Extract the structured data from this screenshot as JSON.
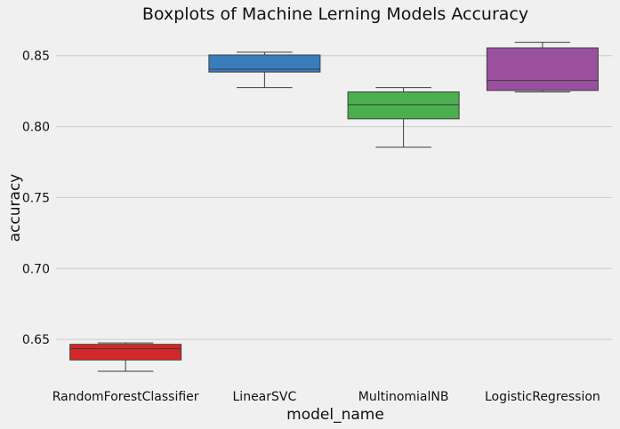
{
  "chart_data": {
    "type": "box",
    "title": "Boxplots of Machine Lerning Models Accuracy",
    "xlabel": "model_name",
    "ylabel": "accuracy",
    "ylim": [
      0.62,
      0.868
    ],
    "yticks": [
      0.65,
      0.7,
      0.75,
      0.8,
      0.85
    ],
    "ytick_labels": [
      "0.65",
      "0.70",
      "0.75",
      "0.80",
      "0.85"
    ],
    "grid": "horizontal",
    "categories": [
      "RandomForestClassifier",
      "LinearSVC",
      "MultinomialNB",
      "LogisticRegression"
    ],
    "boxes": [
      {
        "category": "RandomForestClassifier",
        "whisker_low": 0.6275,
        "q1": 0.6355,
        "median": 0.6435,
        "q3": 0.6465,
        "whisker_high": 0.6475,
        "color": "#d62728"
      },
      {
        "category": "LinearSVC",
        "whisker_low": 0.8275,
        "q1": 0.8385,
        "median": 0.8405,
        "q3": 0.8505,
        "whisker_high": 0.8525,
        "color": "#3a7dbf"
      },
      {
        "category": "MultinomialNB",
        "whisker_low": 0.7855,
        "q1": 0.8055,
        "median": 0.8155,
        "q3": 0.8245,
        "whisker_high": 0.8275,
        "color": "#4caf4f"
      },
      {
        "category": "LogisticRegression",
        "whisker_low": 0.8245,
        "q1": 0.8255,
        "median": 0.8325,
        "q3": 0.8555,
        "whisker_high": 0.8595,
        "color": "#9b4f9f"
      }
    ]
  }
}
